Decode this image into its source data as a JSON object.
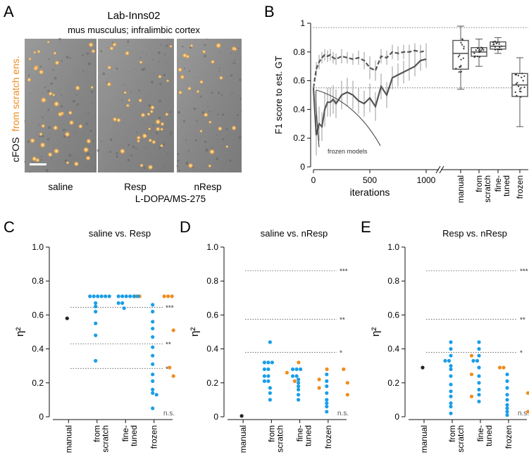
{
  "panel_letters": {
    "A": "A",
    "B": "B",
    "C": "C",
    "D": "D",
    "E": "E"
  },
  "colors": {
    "blue": "#1a9ee6",
    "orange": "#f08c1e",
    "black": "#222222",
    "grey": "#555555"
  },
  "panelA": {
    "title": "Lab-Inns02",
    "subtitle": "mus musculus; infralimbic cortex",
    "ylabel_cfos": "cFOS",
    "ylabel_from": "from scratch ens.",
    "images": [
      {
        "label": "saline",
        "spots": 38
      },
      {
        "label": "Resp",
        "spots": 34
      },
      {
        "label": "nResp",
        "spots": 24
      }
    ],
    "treatment_label": "L-DOPA/MS-275"
  },
  "chart_data": [
    {
      "type": "line",
      "panel": "B",
      "ylabel": "F1 score to est. GT",
      "xlabel": "iterations",
      "ylim": [
        0,
        1
      ],
      "yticks": [
        "0",
        "0.2",
        "0.4",
        "0.6",
        "0.8",
        "1"
      ],
      "xticks": [
        "0",
        "500",
        "1000"
      ],
      "hlines": [
        0.97,
        0.55
      ],
      "annotation": "frozen models",
      "series": [
        {
          "style": "dashed",
          "x": [
            0,
            25,
            50,
            75,
            100,
            125,
            150,
            175,
            200,
            250,
            300,
            350,
            400,
            450,
            500,
            550,
            600,
            650,
            700,
            750,
            800,
            850,
            900,
            950,
            1000
          ],
          "y": [
            0.55,
            0.68,
            0.73,
            0.76,
            0.78,
            0.77,
            0.78,
            0.76,
            0.75,
            0.77,
            0.76,
            0.75,
            0.76,
            0.74,
            0.69,
            0.67,
            0.77,
            0.76,
            0.8,
            0.79,
            0.8,
            0.8,
            0.81,
            0.8,
            0.81
          ],
          "err": [
            0.03,
            0.05,
            0.05,
            0.04,
            0.04,
            0.04,
            0.04,
            0.04,
            0.04,
            0.05,
            0.04,
            0.04,
            0.05,
            0.06,
            0.08,
            0.07,
            0.05,
            0.05,
            0.05,
            0.05,
            0.05,
            0.05,
            0.05,
            0.05,
            0.05
          ]
        },
        {
          "style": "solid",
          "x": [
            0,
            25,
            50,
            75,
            100,
            125,
            150,
            175,
            200,
            250,
            300,
            350,
            400,
            450,
            500,
            550,
            600,
            650,
            700,
            750,
            800,
            850,
            900,
            950,
            1000
          ],
          "y": [
            0.55,
            0.22,
            0.3,
            0.28,
            0.4,
            0.45,
            0.45,
            0.47,
            0.44,
            0.5,
            0.52,
            0.5,
            0.46,
            0.44,
            0.48,
            0.42,
            0.56,
            0.5,
            0.62,
            0.64,
            0.66,
            0.68,
            0.7,
            0.74,
            0.75
          ],
          "err": [
            0.02,
            0.14,
            0.12,
            0.1,
            0.12,
            0.1,
            0.1,
            0.1,
            0.1,
            0.1,
            0.1,
            0.1,
            0.09,
            0.09,
            0.1,
            0.1,
            0.09,
            0.09,
            0.08,
            0.08,
            0.08,
            0.08,
            0.07,
            0.07,
            0.06
          ]
        }
      ],
      "boxes": {
        "categories": [
          "manual",
          "from scratch",
          "fine-tuned",
          "frozen"
        ],
        "stats": [
          {
            "min": 0.54,
            "q1": 0.68,
            "median": 0.79,
            "q3": 0.88,
            "max": 0.98
          },
          {
            "min": 0.7,
            "q1": 0.77,
            "median": 0.8,
            "q3": 0.83,
            "max": 0.89
          },
          {
            "min": 0.79,
            "q1": 0.82,
            "median": 0.84,
            "q3": 0.87,
            "max": 0.9
          },
          {
            "min": 0.28,
            "q1": 0.49,
            "median": 0.57,
            "q3": 0.65,
            "max": 0.76
          }
        ]
      }
    },
    {
      "type": "scatter",
      "panel": "C",
      "title": "saline vs. Resp",
      "ylabel": "η²",
      "ylim": [
        0,
        1
      ],
      "yticks": [
        "0",
        "0.2",
        "0.4",
        "0.6",
        "0.8",
        "1.0"
      ],
      "categories": [
        "manual",
        "from scratch",
        "fine-tuned",
        "frozen"
      ],
      "thresholds": [
        {
          "y": 0.645,
          "label": "***"
        },
        {
          "y": 0.43,
          "label": "**"
        },
        {
          "y": 0.285,
          "label": "*"
        }
      ],
      "ns_label": "n.s.",
      "points": [
        {
          "cat": 0,
          "color": "black",
          "values": [
            0.58
          ]
        },
        {
          "cat": 1,
          "color": "blue",
          "values": [
            0.71,
            0.71,
            0.71,
            0.71,
            0.71,
            0.71,
            0.67,
            0.65,
            0.62,
            0.55,
            0.48,
            0.33
          ]
        },
        {
          "cat": 1,
          "color": "orange",
          "values": [
            0.71,
            0.71
          ]
        },
        {
          "cat": 2,
          "color": "blue",
          "values": [
            0.71,
            0.71,
            0.71,
            0.71,
            0.71,
            0.71,
            0.67,
            0.67,
            0.64
          ]
        },
        {
          "cat": 2,
          "color": "orange",
          "values": [
            0.71,
            0.71,
            0.71
          ]
        },
        {
          "cat": 3,
          "color": "blue",
          "values": [
            0.66,
            0.62,
            0.56,
            0.52,
            0.47,
            0.41,
            0.36,
            0.31,
            0.25,
            0.21,
            0.16,
            0.14,
            0.13,
            0.05
          ]
        },
        {
          "cat": 3,
          "color": "orange",
          "values": [
            0.51,
            0.29,
            0.24
          ]
        }
      ]
    },
    {
      "type": "scatter",
      "panel": "D",
      "title": "saline vs. nResp",
      "ylabel": "η²",
      "ylim": [
        0,
        1
      ],
      "yticks": [
        "0",
        "0.2",
        "0.4",
        "0.6",
        "0.8",
        "1.0"
      ],
      "categories": [
        "manual",
        "from scratch",
        "fine-tuned",
        "frozen"
      ],
      "thresholds": [
        {
          "y": 0.86,
          "label": "***"
        },
        {
          "y": 0.575,
          "label": "**"
        },
        {
          "y": 0.38,
          "label": "*"
        }
      ],
      "ns_label": "n.s.",
      "points": [
        {
          "cat": 0,
          "color": "black",
          "values": [
            0.005
          ]
        },
        {
          "cat": 1,
          "color": "blue",
          "values": [
            0.44,
            0.32,
            0.32,
            0.32,
            0.28,
            0.28,
            0.24,
            0.24,
            0.21,
            0.21,
            0.17,
            0.14,
            0.1
          ]
        },
        {
          "cat": 1,
          "color": "orange",
          "values": [
            0.32,
            0.26,
            0.21
          ]
        },
        {
          "cat": 2,
          "color": "blue",
          "values": [
            0.28,
            0.28,
            0.28,
            0.24,
            0.24,
            0.22,
            0.2,
            0.18,
            0.16,
            0.13,
            0.1
          ]
        },
        {
          "cat": 2,
          "color": "orange",
          "values": [
            0.28,
            0.22,
            0.17
          ]
        },
        {
          "cat": 3,
          "color": "blue",
          "values": [
            0.25,
            0.21,
            0.18,
            0.14,
            0.1,
            0.08,
            0.06,
            0.03
          ]
        },
        {
          "cat": 3,
          "color": "orange",
          "values": [
            0.28,
            0.2,
            0.13
          ]
        }
      ]
    },
    {
      "type": "scatter",
      "panel": "E",
      "title": "Resp vs. nResp",
      "ylabel": "η²",
      "ylim": [
        0,
        1
      ],
      "yticks": [
        "0",
        "0.2",
        "0.4",
        "0.6",
        "0.8",
        "1.0"
      ],
      "categories": [
        "manual",
        "from scratch",
        "fine-tuned",
        "frozen"
      ],
      "thresholds": [
        {
          "y": 0.86,
          "label": "***"
        },
        {
          "y": 0.575,
          "label": "**"
        },
        {
          "y": 0.38,
          "label": "*"
        }
      ],
      "ns_label": "n.s.",
      "points": [
        {
          "cat": 0,
          "color": "black",
          "values": [
            0.29
          ]
        },
        {
          "cat": 1,
          "color": "blue",
          "values": [
            0.44,
            0.4,
            0.36,
            0.33,
            0.33,
            0.3,
            0.28,
            0.24,
            0.19,
            0.15,
            0.12,
            0.08,
            0.06,
            0.02
          ]
        },
        {
          "cat": 1,
          "color": "orange",
          "values": [
            0.36,
            0.25,
            0.12
          ]
        },
        {
          "cat": 2,
          "color": "blue",
          "values": [
            0.44,
            0.4,
            0.36,
            0.33,
            0.33,
            0.29,
            0.24,
            0.2,
            0.16,
            0.13,
            0.09
          ]
        },
        {
          "cat": 2,
          "color": "orange",
          "values": [
            0.29,
            0.29
          ]
        },
        {
          "cat": 3,
          "color": "blue",
          "values": [
            0.25,
            0.21,
            0.17,
            0.13,
            0.1,
            0.07,
            0.05,
            0.03,
            0.01
          ]
        },
        {
          "cat": 3,
          "color": "orange",
          "values": [
            0.14,
            0.03
          ]
        }
      ]
    }
  ]
}
